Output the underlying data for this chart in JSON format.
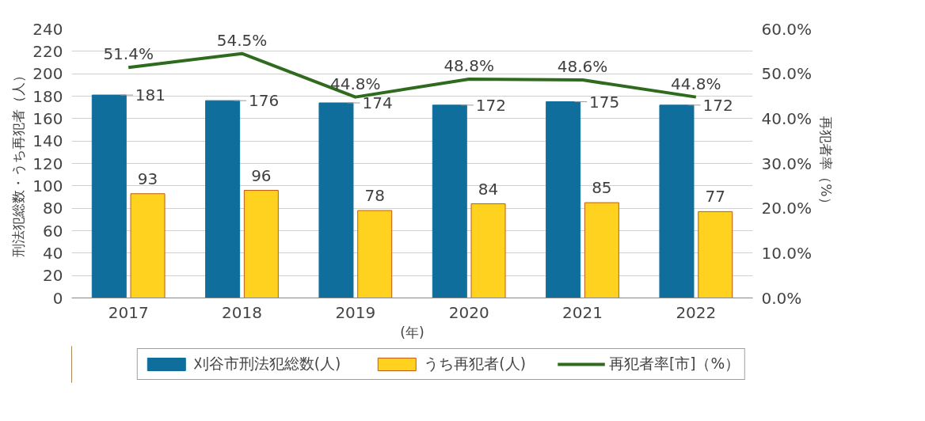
{
  "chart_data": {
    "type": "bar",
    "categories": [
      "2017",
      "2018",
      "2019",
      "2020",
      "2021",
      "2022"
    ],
    "xlabel": "(年)",
    "ylabel": "刑法犯総数・うち再犯者（人）",
    "y2label": "再犯者率（%）",
    "series": [
      {
        "name": "刈谷市刑法犯総数(人)",
        "color": "#0f6e9c",
        "values": [
          181,
          176,
          174,
          172,
          175,
          172
        ]
      },
      {
        "name": "うち再犯者(人)",
        "color": "#ffd21f",
        "values": [
          93,
          96,
          78,
          84,
          85,
          77
        ]
      },
      {
        "name": "再犯者率[市]（%）",
        "type": "line",
        "axis": "y2",
        "color": "#2e6b1e",
        "values": [
          51.4,
          54.5,
          44.8,
          48.8,
          48.6,
          44.8
        ],
        "value_labels": [
          "51.4%",
          "54.5%",
          "44.8%",
          "48.8%",
          "48.6%",
          "44.8%"
        ]
      }
    ],
    "ylim": [
      0,
      240
    ],
    "yticks": [
      0,
      20,
      40,
      60,
      80,
      100,
      120,
      140,
      160,
      180,
      200,
      220,
      240
    ],
    "y2lim": [
      0,
      60
    ],
    "y2ticks": [
      {
        "value": 0,
        "label": "0.0%"
      },
      {
        "value": 10,
        "label": "10.0%"
      },
      {
        "value": 20,
        "label": "20.0%"
      },
      {
        "value": 30,
        "label": "30.0%"
      },
      {
        "value": 40,
        "label": "40.0%"
      },
      {
        "value": 50,
        "label": "50.0%"
      },
      {
        "value": 60,
        "label": "60.0%"
      }
    ],
    "grid": "y",
    "legend": "bottom",
    "data_labels": true
  }
}
